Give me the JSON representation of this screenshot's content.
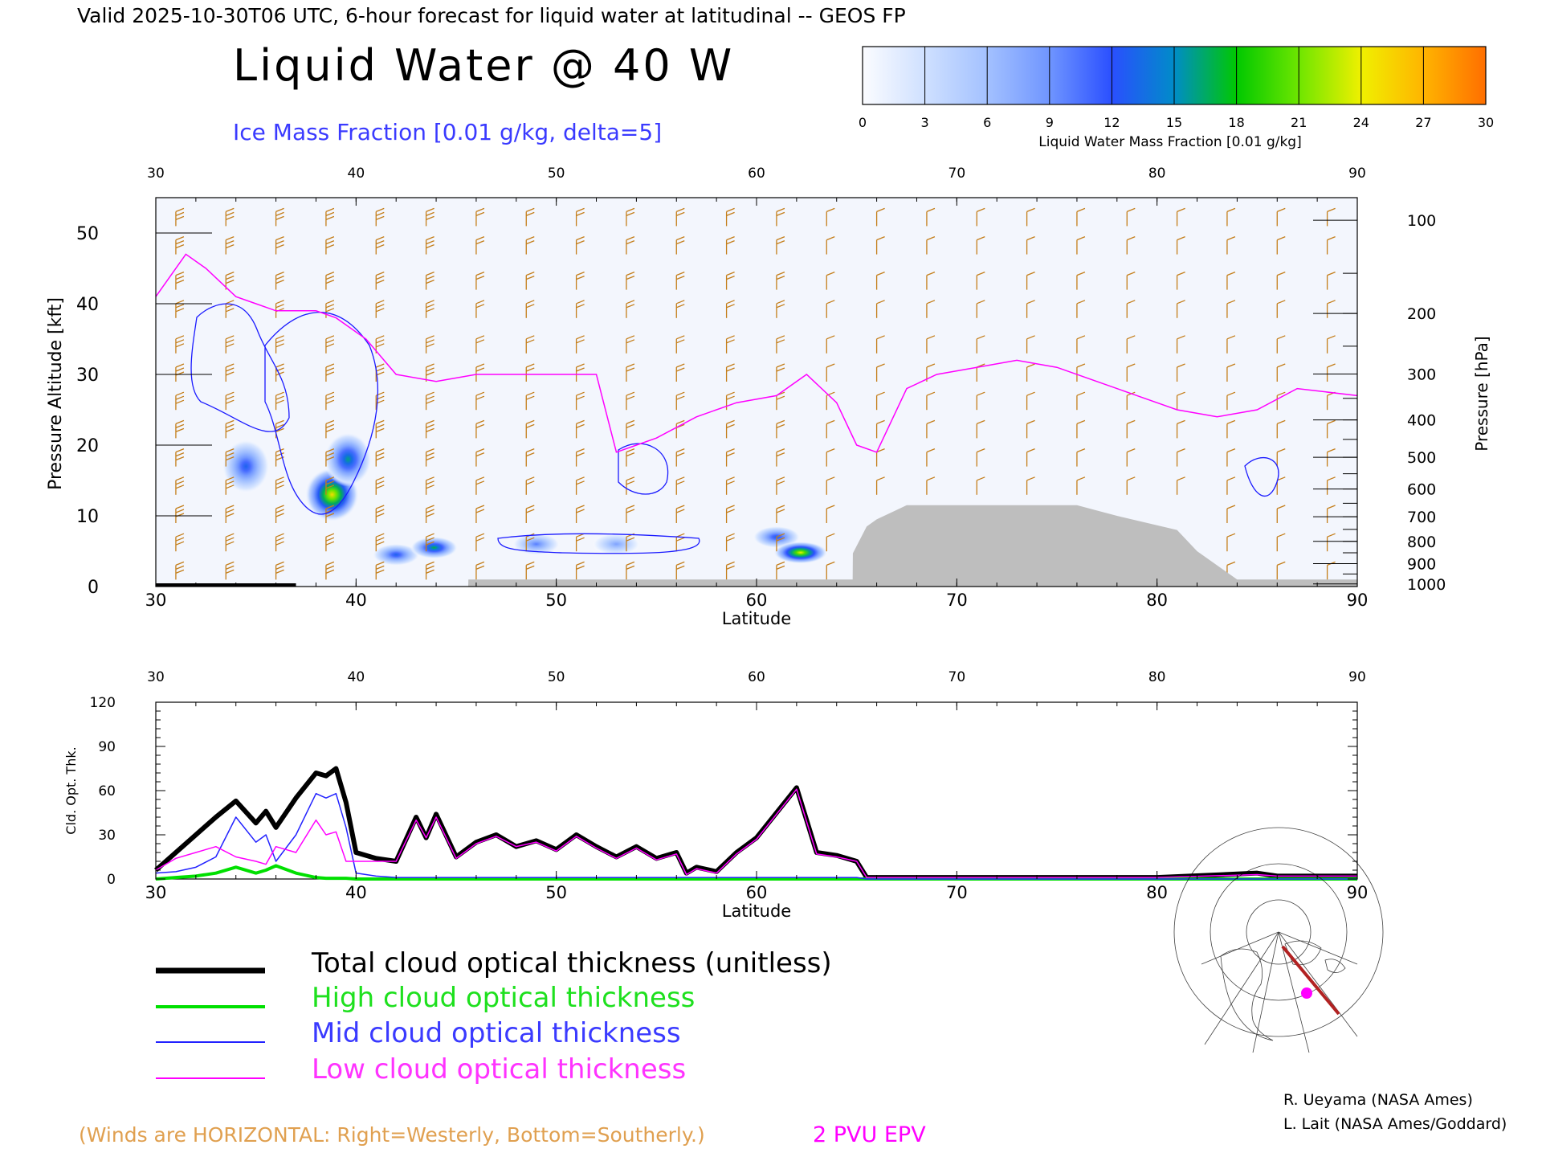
{
  "header": {
    "valid_line": "Valid 2025-10-30T06 UTC, 6-hour forecast for liquid water at latitudinal -- GEOS FP",
    "title": "Liquid Water @ 40 W",
    "subtitle": "Ice Mass Fraction [0.01 g/kg, delta=5]"
  },
  "colorbar": {
    "label": "Liquid Water Mass Fraction [0.01 g/kg]",
    "ticks": [
      "0",
      "3",
      "6",
      "9",
      "12",
      "15",
      "18",
      "21",
      "24",
      "27",
      "30"
    ],
    "colors": [
      "#fbfcff",
      "#cfe0ff",
      "#a3c1ff",
      "#6f95ff",
      "#2a4fff",
      "#008cc8",
      "#00c800",
      "#6ee600",
      "#f0f000",
      "#ffb400",
      "#ff6e00",
      "#ff1e00"
    ]
  },
  "colors": {
    "wind_barb": "#c47e1a",
    "epv": "#ff00ff",
    "ice_contour": "#1a1aff",
    "terrain": "#bebebe",
    "total": "#000000",
    "high": "#00e000",
    "mid": "#2222ff",
    "low": "#ff00ff"
  },
  "chart_data": [
    {
      "type": "heatmap",
      "name": "Liquid water cross-section",
      "xlabel": "Latitude",
      "ylabel": "Pressure Altitude [kft]",
      "y2label": "Pressure [hPa]",
      "xlim": [
        30,
        90
      ],
      "ylim": [
        0,
        55
      ],
      "x_ticks": [
        "30",
        "40",
        "50",
        "60",
        "70",
        "80",
        "90"
      ],
      "y_ticks": [
        "0",
        "10",
        "20",
        "30",
        "40",
        "50"
      ],
      "pressure_ticks": [
        "100",
        "200",
        "300",
        "400",
        "500",
        "600",
        "700",
        "800",
        "900",
        "1000"
      ],
      "pressure_levels": [
        100,
        200,
        300,
        400,
        500,
        600,
        700,
        800,
        900,
        1000
      ],
      "liquid_blobs": [
        {
          "lat": 34.5,
          "kft": 17.0,
          "peak": 13
        },
        {
          "lat": 38.8,
          "kft": 13.0,
          "peak": 25
        },
        {
          "lat": 39.6,
          "kft": 18.0,
          "peak": 16
        },
        {
          "lat": 42.0,
          "kft": 4.5,
          "peak": 13
        },
        {
          "lat": 43.9,
          "kft": 5.5,
          "peak": 17
        },
        {
          "lat": 49.0,
          "kft": 6.0,
          "peak": 10
        },
        {
          "lat": 53.0,
          "kft": 6.0,
          "peak": 8
        },
        {
          "lat": 61.0,
          "kft": 7.0,
          "peak": 13
        },
        {
          "lat": 62.2,
          "kft": 4.8,
          "peak": 24
        }
      ],
      "epv_2pvu": {
        "lat": [
          30,
          31.5,
          32.5,
          34,
          35,
          36,
          37,
          38,
          39,
          40.5,
          42,
          44,
          46,
          48,
          50,
          52,
          53,
          54,
          55,
          57,
          59,
          61,
          62.5,
          64,
          65,
          66,
          67.5,
          69,
          71,
          73,
          75,
          77,
          79,
          81,
          83,
          85,
          87,
          90
        ],
        "kft": [
          41,
          47,
          45,
          41,
          40,
          39,
          39,
          39,
          38,
          35,
          30,
          29,
          30,
          30,
          30,
          30,
          19,
          20,
          21,
          24,
          26,
          27,
          30,
          26,
          20,
          19,
          28,
          30,
          31,
          32,
          31,
          29,
          27,
          25,
          24,
          25,
          28,
          27
        ]
      },
      "terrain": {
        "lat": [
          30,
          37,
          37.01,
          45.6,
          45.61,
          64.8,
          64.81,
          65.5,
          66,
          67.5,
          76,
          78,
          81,
          82,
          83,
          84,
          90
        ],
        "kft": [
          0,
          0,
          0,
          0,
          1.0,
          1.0,
          4.7,
          8.5,
          9.5,
          11.5,
          11.5,
          10,
          8,
          5,
          3,
          1,
          1
        ]
      },
      "legend": [
        "2 PVU EPV",
        "(Winds are HORIZONTAL: Right=Westerly, Bottom=Southerly.)"
      ]
    },
    {
      "type": "line",
      "name": "Cloud optical thickness",
      "xlabel": "Latitude",
      "ylabel": "Cld. Opt. Thk.",
      "xlim": [
        30,
        90
      ],
      "ylim": [
        0,
        120
      ],
      "x_ticks": [
        "30",
        "40",
        "50",
        "60",
        "70",
        "80",
        "90"
      ],
      "y_ticks": [
        "0",
        "30",
        "60",
        "90",
        "120"
      ],
      "x": [
        30,
        31,
        32,
        33,
        34,
        35,
        35.5,
        36,
        37,
        38,
        38.5,
        39,
        39.5,
        40,
        41,
        42,
        43,
        43.5,
        44,
        45,
        46,
        47,
        48,
        49,
        50,
        51,
        52,
        53,
        54,
        55,
        56,
        56.5,
        57,
        58,
        59,
        60,
        61,
        62,
        63,
        64,
        65,
        65.5,
        70,
        80,
        85,
        86,
        90
      ],
      "series": [
        {
          "name": "Total cloud optical thickness (unitless)",
          "values": [
            6,
            18,
            30,
            42,
            53,
            38,
            46,
            35,
            55,
            72,
            70,
            75,
            52,
            18,
            14,
            12,
            42,
            28,
            44,
            15,
            25,
            30,
            22,
            26,
            20,
            30,
            22,
            15,
            22,
            14,
            18,
            4,
            8,
            5,
            18,
            28,
            45,
            62,
            18,
            16,
            12,
            1,
            1,
            1,
            4,
            2,
            2
          ]
        },
        {
          "name": "High cloud optical thickness",
          "values": [
            0,
            1,
            2,
            4,
            8,
            4,
            6,
            9,
            4,
            1,
            0.5,
            0.5,
            0.5,
            0,
            0,
            0,
            0,
            0,
            0,
            0,
            0,
            0,
            0,
            0,
            0,
            0,
            0,
            0,
            0,
            0,
            0,
            0,
            0,
            0,
            0,
            0,
            0,
            0,
            0,
            0,
            0,
            0,
            0,
            0,
            0,
            0,
            0
          ]
        },
        {
          "name": "Mid cloud optical thickness",
          "values": [
            4,
            5,
            8,
            15,
            42,
            25,
            30,
            12,
            30,
            58,
            55,
            58,
            35,
            4,
            2,
            1,
            1,
            1,
            1,
            1,
            1,
            1,
            1,
            1,
            1,
            1,
            1,
            1,
            1,
            1,
            1,
            1,
            1,
            1,
            1,
            1,
            1,
            1,
            1,
            1,
            1,
            0,
            0,
            0,
            0,
            0,
            0
          ]
        },
        {
          "name": "Low cloud optical thickness",
          "values": [
            6,
            14,
            18,
            22,
            15,
            12,
            10,
            22,
            18,
            40,
            30,
            32,
            12,
            12,
            12,
            12,
            40,
            28,
            42,
            14,
            24,
            29,
            22,
            25,
            19,
            29,
            21,
            14,
            21,
            13,
            17,
            3,
            7,
            4,
            17,
            27,
            44,
            61,
            17,
            15,
            12,
            1,
            1,
            1,
            3,
            2,
            2
          ]
        }
      ]
    }
  ],
  "legend": {
    "total": "Total cloud optical thickness (unitless)",
    "high": "High cloud optical thickness",
    "mid": "Mid cloud optical thickness",
    "low": "Low cloud optical thickness"
  },
  "footer": {
    "winds_note": "(Winds are HORIZONTAL: Right=Westerly, Bottom=Southerly.)",
    "epv_label": "2 PVU EPV",
    "credit1": "R. Ueyama (NASA Ames)",
    "credit2": "L. Lait (NASA Ames/Goddard)"
  }
}
